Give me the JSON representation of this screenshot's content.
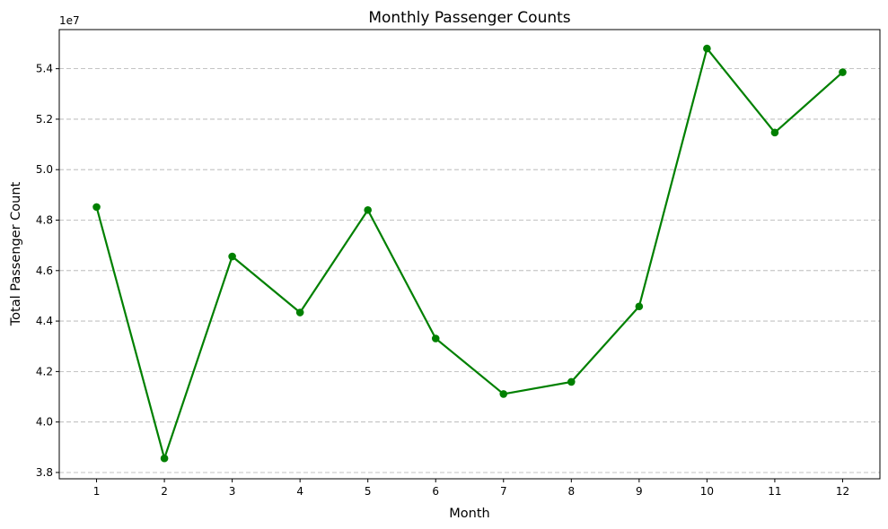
{
  "chart_data": {
    "type": "line",
    "title": "Monthly Passenger Counts",
    "xlabel": "Month",
    "ylabel": "Total Passenger Count",
    "y_offset_label": "1e7",
    "x": [
      1,
      2,
      3,
      4,
      5,
      6,
      7,
      8,
      9,
      10,
      11,
      12
    ],
    "x_ticks": [
      "1",
      "2",
      "3",
      "4",
      "5",
      "6",
      "7",
      "8",
      "9",
      "10",
      "11",
      "12"
    ],
    "series": [
      {
        "values": [
          48520000,
          38560000,
          46560000,
          44340000,
          48400000,
          43310000,
          41110000,
          41590000,
          44580000,
          54800000,
          51470000,
          53860000
        ],
        "color": "#008000",
        "marker": "circle"
      }
    ],
    "y_ticks": [
      3.8,
      4.0,
      4.2,
      4.4,
      4.6,
      4.8,
      5.0,
      5.2,
      5.4
    ],
    "y_tick_labels": [
      "3.8",
      "4.0",
      "4.2",
      "4.4",
      "4.6",
      "4.8",
      "5.0",
      "5.2",
      "5.4"
    ],
    "xlim": [
      0.45,
      12.55
    ],
    "ylim": [
      37750000,
      55550000
    ],
    "grid": "y-dashed",
    "legend": "none"
  }
}
